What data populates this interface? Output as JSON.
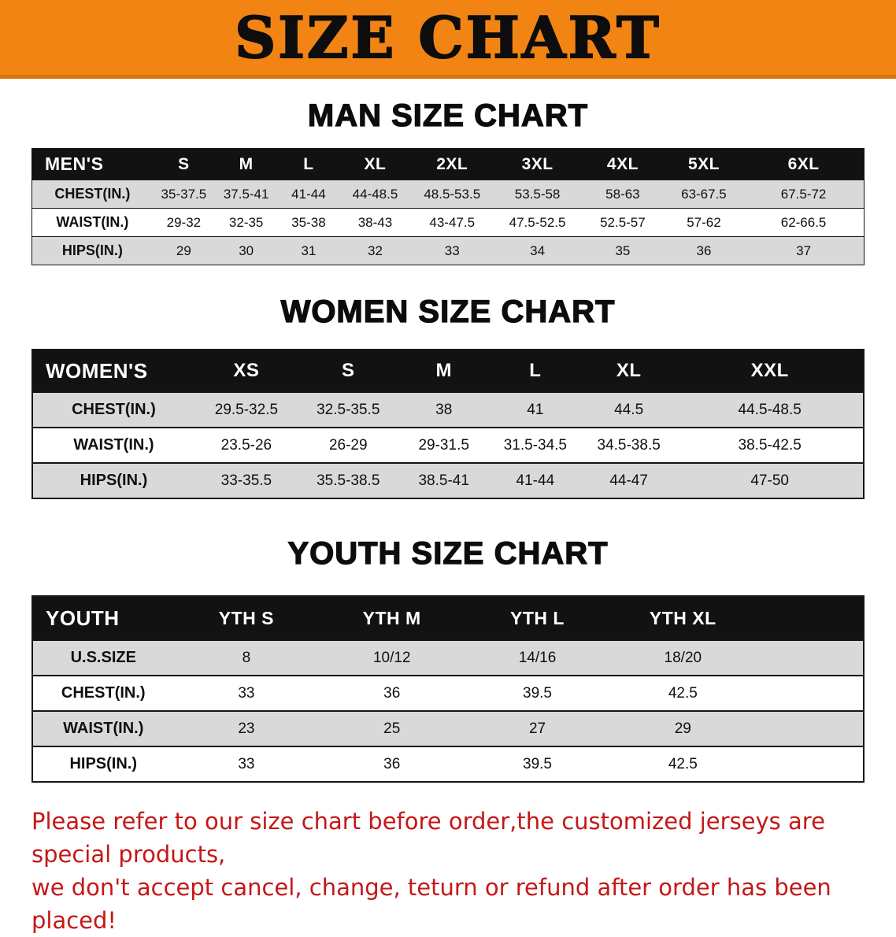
{
  "banner": {
    "title": "SIZE CHART"
  },
  "sections": [
    {
      "heading": "MAN SIZE CHART",
      "table": {
        "header": [
          "MEN'S",
          "S",
          "M",
          "L",
          "XL",
          "2XL",
          "3XL",
          "4XL",
          "5XL",
          "6XL"
        ],
        "rows": [
          [
            "CHEST(IN.)",
            "35-37.5",
            "37.5-41",
            "41-44",
            "44-48.5",
            "48.5-53.5",
            "53.5-58",
            "58-63",
            "63-67.5",
            "67.5-72"
          ],
          [
            "WAIST(IN.)",
            "29-32",
            "32-35",
            "35-38",
            "38-43",
            "43-47.5",
            "47.5-52.5",
            "52.5-57",
            "57-62",
            "62-66.5"
          ],
          [
            "HIPS(IN.)",
            "29",
            "30",
            "31",
            "32",
            "33",
            "34",
            "35",
            "36",
            "37"
          ]
        ]
      }
    },
    {
      "heading": "WOMEN SIZE CHART",
      "table": {
        "header": [
          "WOMEN'S",
          "XS",
          "S",
          "M",
          "L",
          "XL",
          "XXL"
        ],
        "rows": [
          [
            "CHEST(IN.)",
            "29.5-32.5",
            "32.5-35.5",
            "38",
            "41",
            "44.5",
            "44.5-48.5"
          ],
          [
            "WAIST(IN.)",
            "23.5-26",
            "26-29",
            "29-31.5",
            "31.5-34.5",
            "34.5-38.5",
            "38.5-42.5"
          ],
          [
            "HIPS(IN.)",
            "33-35.5",
            "35.5-38.5",
            "38.5-41",
            "41-44",
            "44-47",
            "47-50"
          ]
        ]
      }
    },
    {
      "heading": "YOUTH SIZE CHART",
      "table": {
        "header": [
          "YOUTH",
          "YTH S",
          "YTH M",
          "YTH L",
          "YTH XL"
        ],
        "rows": [
          [
            "U.S.SIZE",
            "8",
            "10/12",
            "14/16",
            "18/20"
          ],
          [
            "CHEST(IN.)",
            "33",
            "36",
            "39.5",
            "42.5"
          ],
          [
            "WAIST(IN.)",
            "23",
            "25",
            "27",
            "29"
          ],
          [
            "HIPS(IN.)",
            "33",
            "36",
            "39.5",
            "42.5"
          ]
        ]
      }
    }
  ],
  "disclaimer": {
    "line1": "Please refer to our size chart before order,the customized jerseys are special products,",
    "line2": "we don't accept cancel, change, teturn or refund after order has been placed!"
  },
  "colors": {
    "banner_bg": "#f28414",
    "header_bg": "#121212",
    "row_alt": "#d9d9d9",
    "disclaimer_red": "#c51717"
  }
}
